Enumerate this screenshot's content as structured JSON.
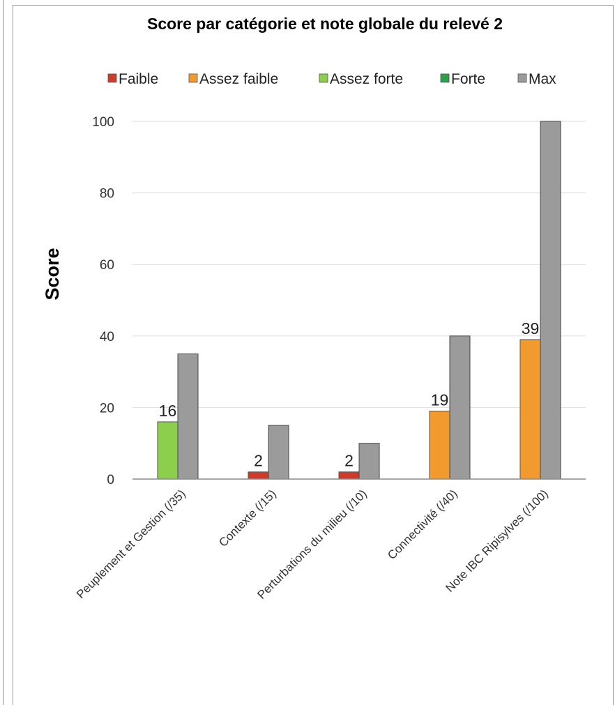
{
  "chart_data": {
    "type": "bar",
    "title": "Score par catégorie et note globale du relevé 2",
    "ylabel": "Score",
    "xlabel": "",
    "ylim": [
      0,
      100
    ],
    "yticks": [
      0,
      20,
      40,
      60,
      80,
      100
    ],
    "grid": true,
    "legend_position": "top",
    "categories": [
      "Peuplement et Gestion (/35)",
      "Contexte (/15)",
      "Perturbations du milieu (/10)",
      "Connectivité (/40)",
      "Note IBC Ripisylves (/100)"
    ],
    "legend": [
      {
        "name": "Faible",
        "color": "#d03a2a"
      },
      {
        "name": "Assez faible",
        "color": "#f39a2e"
      },
      {
        "name": "Assez forte",
        "color": "#8ccf4d"
      },
      {
        "name": "Forte",
        "color": "#2e9e4a"
      },
      {
        "name": "Max",
        "color": "#9b9b9b"
      }
    ],
    "score": {
      "values": [
        16,
        2,
        2,
        19,
        39
      ],
      "classes": [
        "Assez forte",
        "Faible",
        "Faible",
        "Assez faible",
        "Assez faible"
      ],
      "labels": [
        "16",
        "2",
        "2",
        "19",
        "39"
      ]
    },
    "max": {
      "values": [
        35,
        15,
        10,
        40,
        100
      ]
    }
  }
}
